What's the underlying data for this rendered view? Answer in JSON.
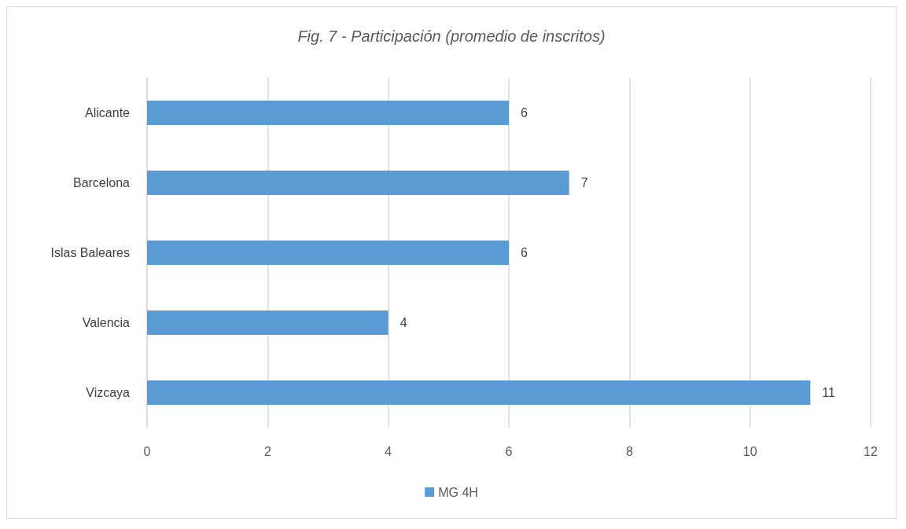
{
  "chart_data": {
    "type": "bar",
    "orientation": "horizontal",
    "title": "Fig. 7 - Participación (promedio de inscritos)",
    "categories": [
      "Alicante",
      "Barcelona",
      "Islas Baleares",
      "Valencia",
      "Vizcaya"
    ],
    "series": [
      {
        "name": "MG 4H",
        "color": "#5b9bd5",
        "values": [
          6,
          7,
          6,
          4,
          11
        ]
      }
    ],
    "xlim": [
      0,
      12
    ],
    "xticks": [
      0,
      2,
      4,
      6,
      8,
      10,
      12
    ],
    "grid": "x",
    "legend": "bottom",
    "data_labels": true
  }
}
